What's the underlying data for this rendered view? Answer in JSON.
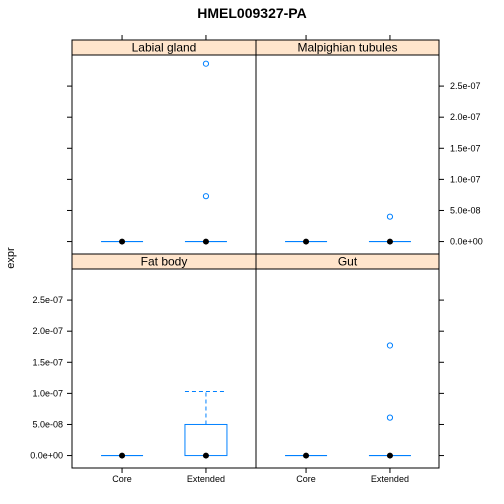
{
  "chart_data": {
    "type": "box",
    "title": "HMEL009327-PA",
    "ylabel": "expr",
    "xlabel": "",
    "categories": [
      "Core",
      "Extended"
    ],
    "y_ticks": [
      0,
      5e-08,
      1e-07,
      1.5e-07,
      2e-07,
      2.5e-07
    ],
    "y_tick_labels": [
      "0.0e+00",
      "5.0e-08",
      "1.0e-07",
      "1.5e-07",
      "2.0e-07",
      "2.5e-07"
    ],
    "ylim": [
      -2e-08,
      3e-07
    ],
    "colors": {
      "strip": "#ffe5cc",
      "box": "#0080ff",
      "median": "#000000"
    },
    "panels": [
      {
        "name": "Labial gland",
        "boxes": [
          {
            "category": "Core",
            "q1": 0,
            "median": 0,
            "q3": 0,
            "whisker_low": 0,
            "whisker_high": 0,
            "outliers": []
          },
          {
            "category": "Extended",
            "q1": 0,
            "median": 0,
            "q3": 0,
            "whisker_low": 0,
            "whisker_high": 0,
            "outliers": [
              7.3e-08,
              2.86e-07
            ]
          }
        ]
      },
      {
        "name": "Malpighian tubules",
        "boxes": [
          {
            "category": "Core",
            "q1": 0,
            "median": 0,
            "q3": 0,
            "whisker_low": 0,
            "whisker_high": 0,
            "outliers": []
          },
          {
            "category": "Extended",
            "q1": 0,
            "median": 0,
            "q3": 0,
            "whisker_low": 0,
            "whisker_high": 0,
            "outliers": [
              4e-08
            ]
          }
        ]
      },
      {
        "name": "Fat body",
        "boxes": [
          {
            "category": "Core",
            "q1": 0,
            "median": 0,
            "q3": 0,
            "whisker_low": 0,
            "whisker_high": 0,
            "outliers": []
          },
          {
            "category": "Extended",
            "q1": 0,
            "median": 0,
            "q3": 5e-08,
            "whisker_low": 0,
            "whisker_high": 1.03e-07,
            "outliers": []
          }
        ]
      },
      {
        "name": "Gut",
        "boxes": [
          {
            "category": "Core",
            "q1": 0,
            "median": 0,
            "q3": 0,
            "whisker_low": 0,
            "whisker_high": 0,
            "outliers": []
          },
          {
            "category": "Extended",
            "q1": 0,
            "median": 0,
            "q3": 0,
            "whisker_low": 0,
            "whisker_high": 0,
            "outliers": [
              6.1e-08,
              1.77e-07
            ]
          }
        ]
      }
    ]
  }
}
